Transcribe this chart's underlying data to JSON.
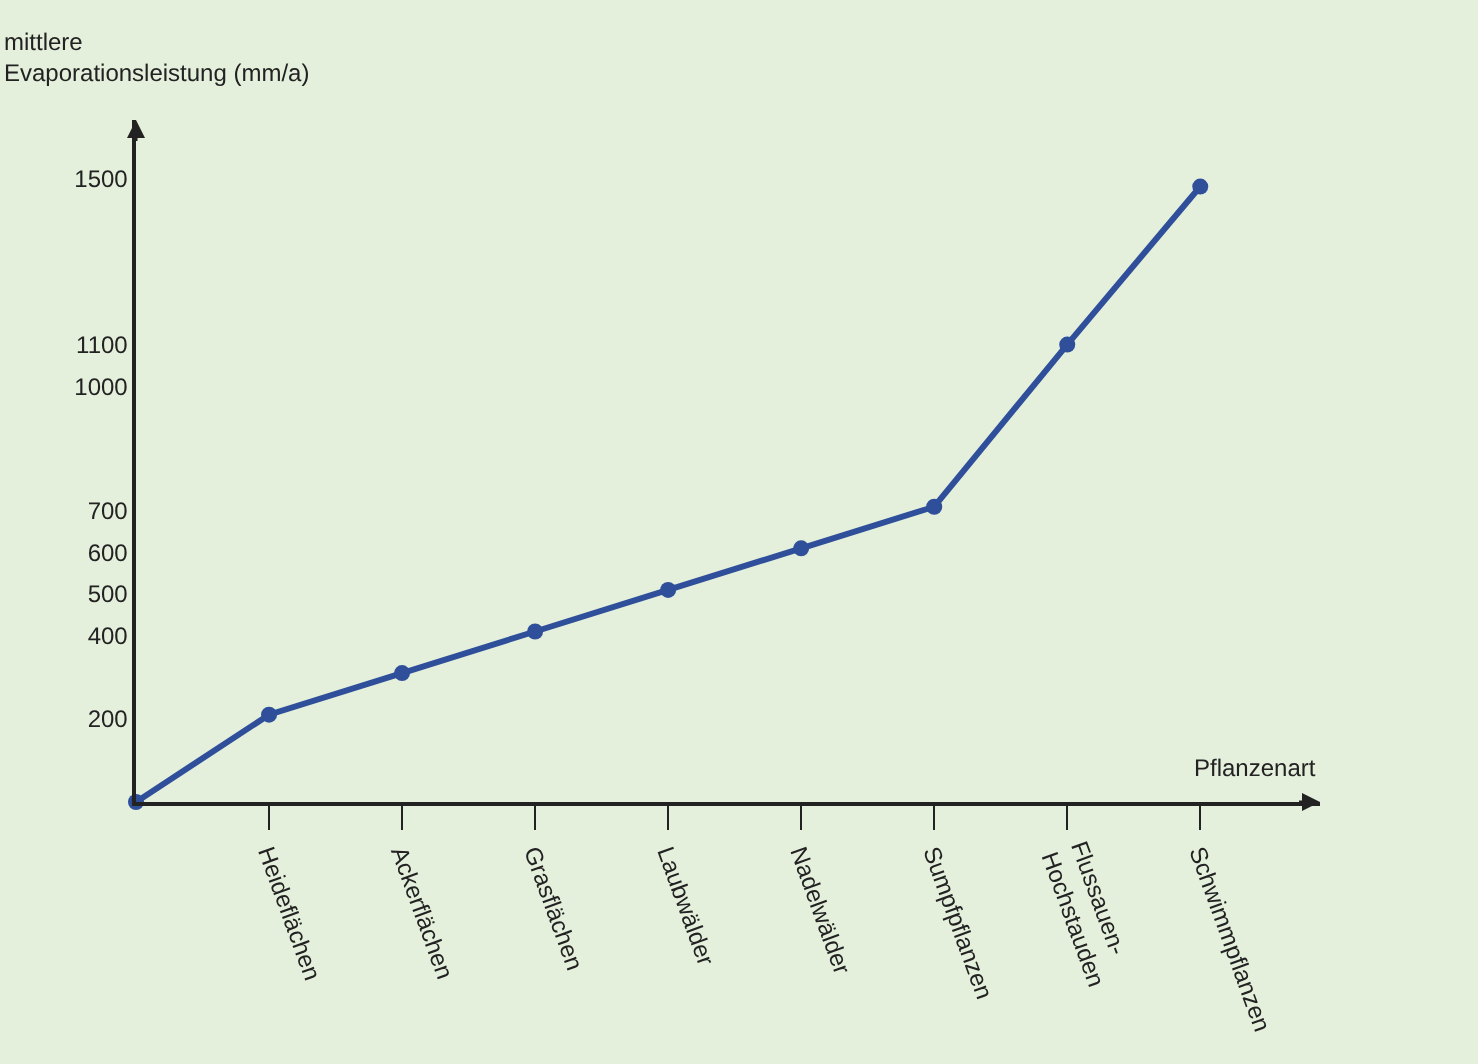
{
  "chart_data": {
    "type": "line",
    "ylabel": "mittlere\nEvaporationsleistung (mm/a)",
    "xlabel": "Pflanzenart",
    "categories": [
      null,
      "Heideflächen",
      "Ackerflächen",
      "Grasflächen",
      "Laubwälder",
      "Nadelwälder",
      "Sumpfpflanzen",
      "Flussauen-\nHochstauden",
      "Schwimmpflanzen"
    ],
    "series": [
      {
        "color": "#2f4f9b",
        "values": [
          0,
          210,
          310,
          410,
          510,
          610,
          710,
          1100,
          1480
        ]
      }
    ],
    "ylim": [
      0,
      1640
    ],
    "yticks": [
      200,
      400,
      500,
      600,
      700,
      1000,
      1100,
      1500
    ],
    "marker": "circle",
    "line_style": "solid",
    "grid": false,
    "legend": false
  }
}
